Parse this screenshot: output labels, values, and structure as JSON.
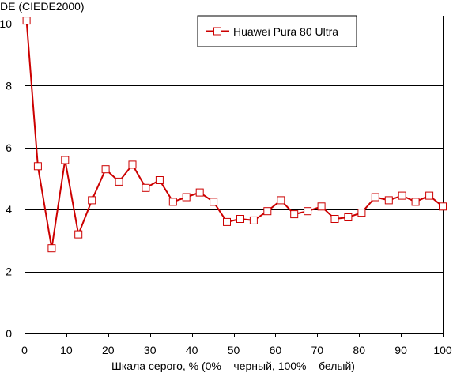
{
  "chart_data": {
    "type": "line",
    "ylabel": "DE (CIEDE2000)",
    "xlabel": "Шкала серого, % (0% – черный, 100% – белый)",
    "xlim": [
      0,
      100
    ],
    "ylim": [
      0,
      10
    ],
    "x_ticks": [
      0,
      10,
      20,
      30,
      40,
      50,
      60,
      70,
      80,
      90,
      100
    ],
    "y_ticks": [
      0,
      2,
      4,
      6,
      8,
      10
    ],
    "grid": "horizontal",
    "legend_position": "top-right",
    "series": [
      {
        "name": "Huawei Pura 80 Ultra",
        "color": "#cc0000",
        "marker": "open-square",
        "x": [
          0.5,
          3.2,
          6.5,
          9.7,
          12.9,
          16.1,
          19.4,
          22.6,
          25.8,
          29.0,
          32.3,
          35.5,
          38.7,
          41.9,
          45.2,
          48.4,
          51.6,
          54.8,
          58.1,
          61.3,
          64.5,
          67.7,
          71.0,
          74.2,
          77.4,
          80.6,
          83.9,
          87.1,
          90.3,
          93.5,
          96.8,
          100.0
        ],
        "values": [
          10.1,
          5.4,
          2.75,
          5.6,
          3.2,
          4.3,
          5.3,
          4.9,
          5.45,
          4.7,
          4.95,
          4.25,
          4.4,
          4.55,
          4.25,
          3.6,
          3.7,
          3.65,
          3.95,
          4.3,
          3.85,
          3.95,
          4.1,
          3.7,
          3.75,
          3.9,
          4.4,
          4.3,
          4.45,
          4.25,
          4.45,
          4.1
        ]
      }
    ]
  }
}
